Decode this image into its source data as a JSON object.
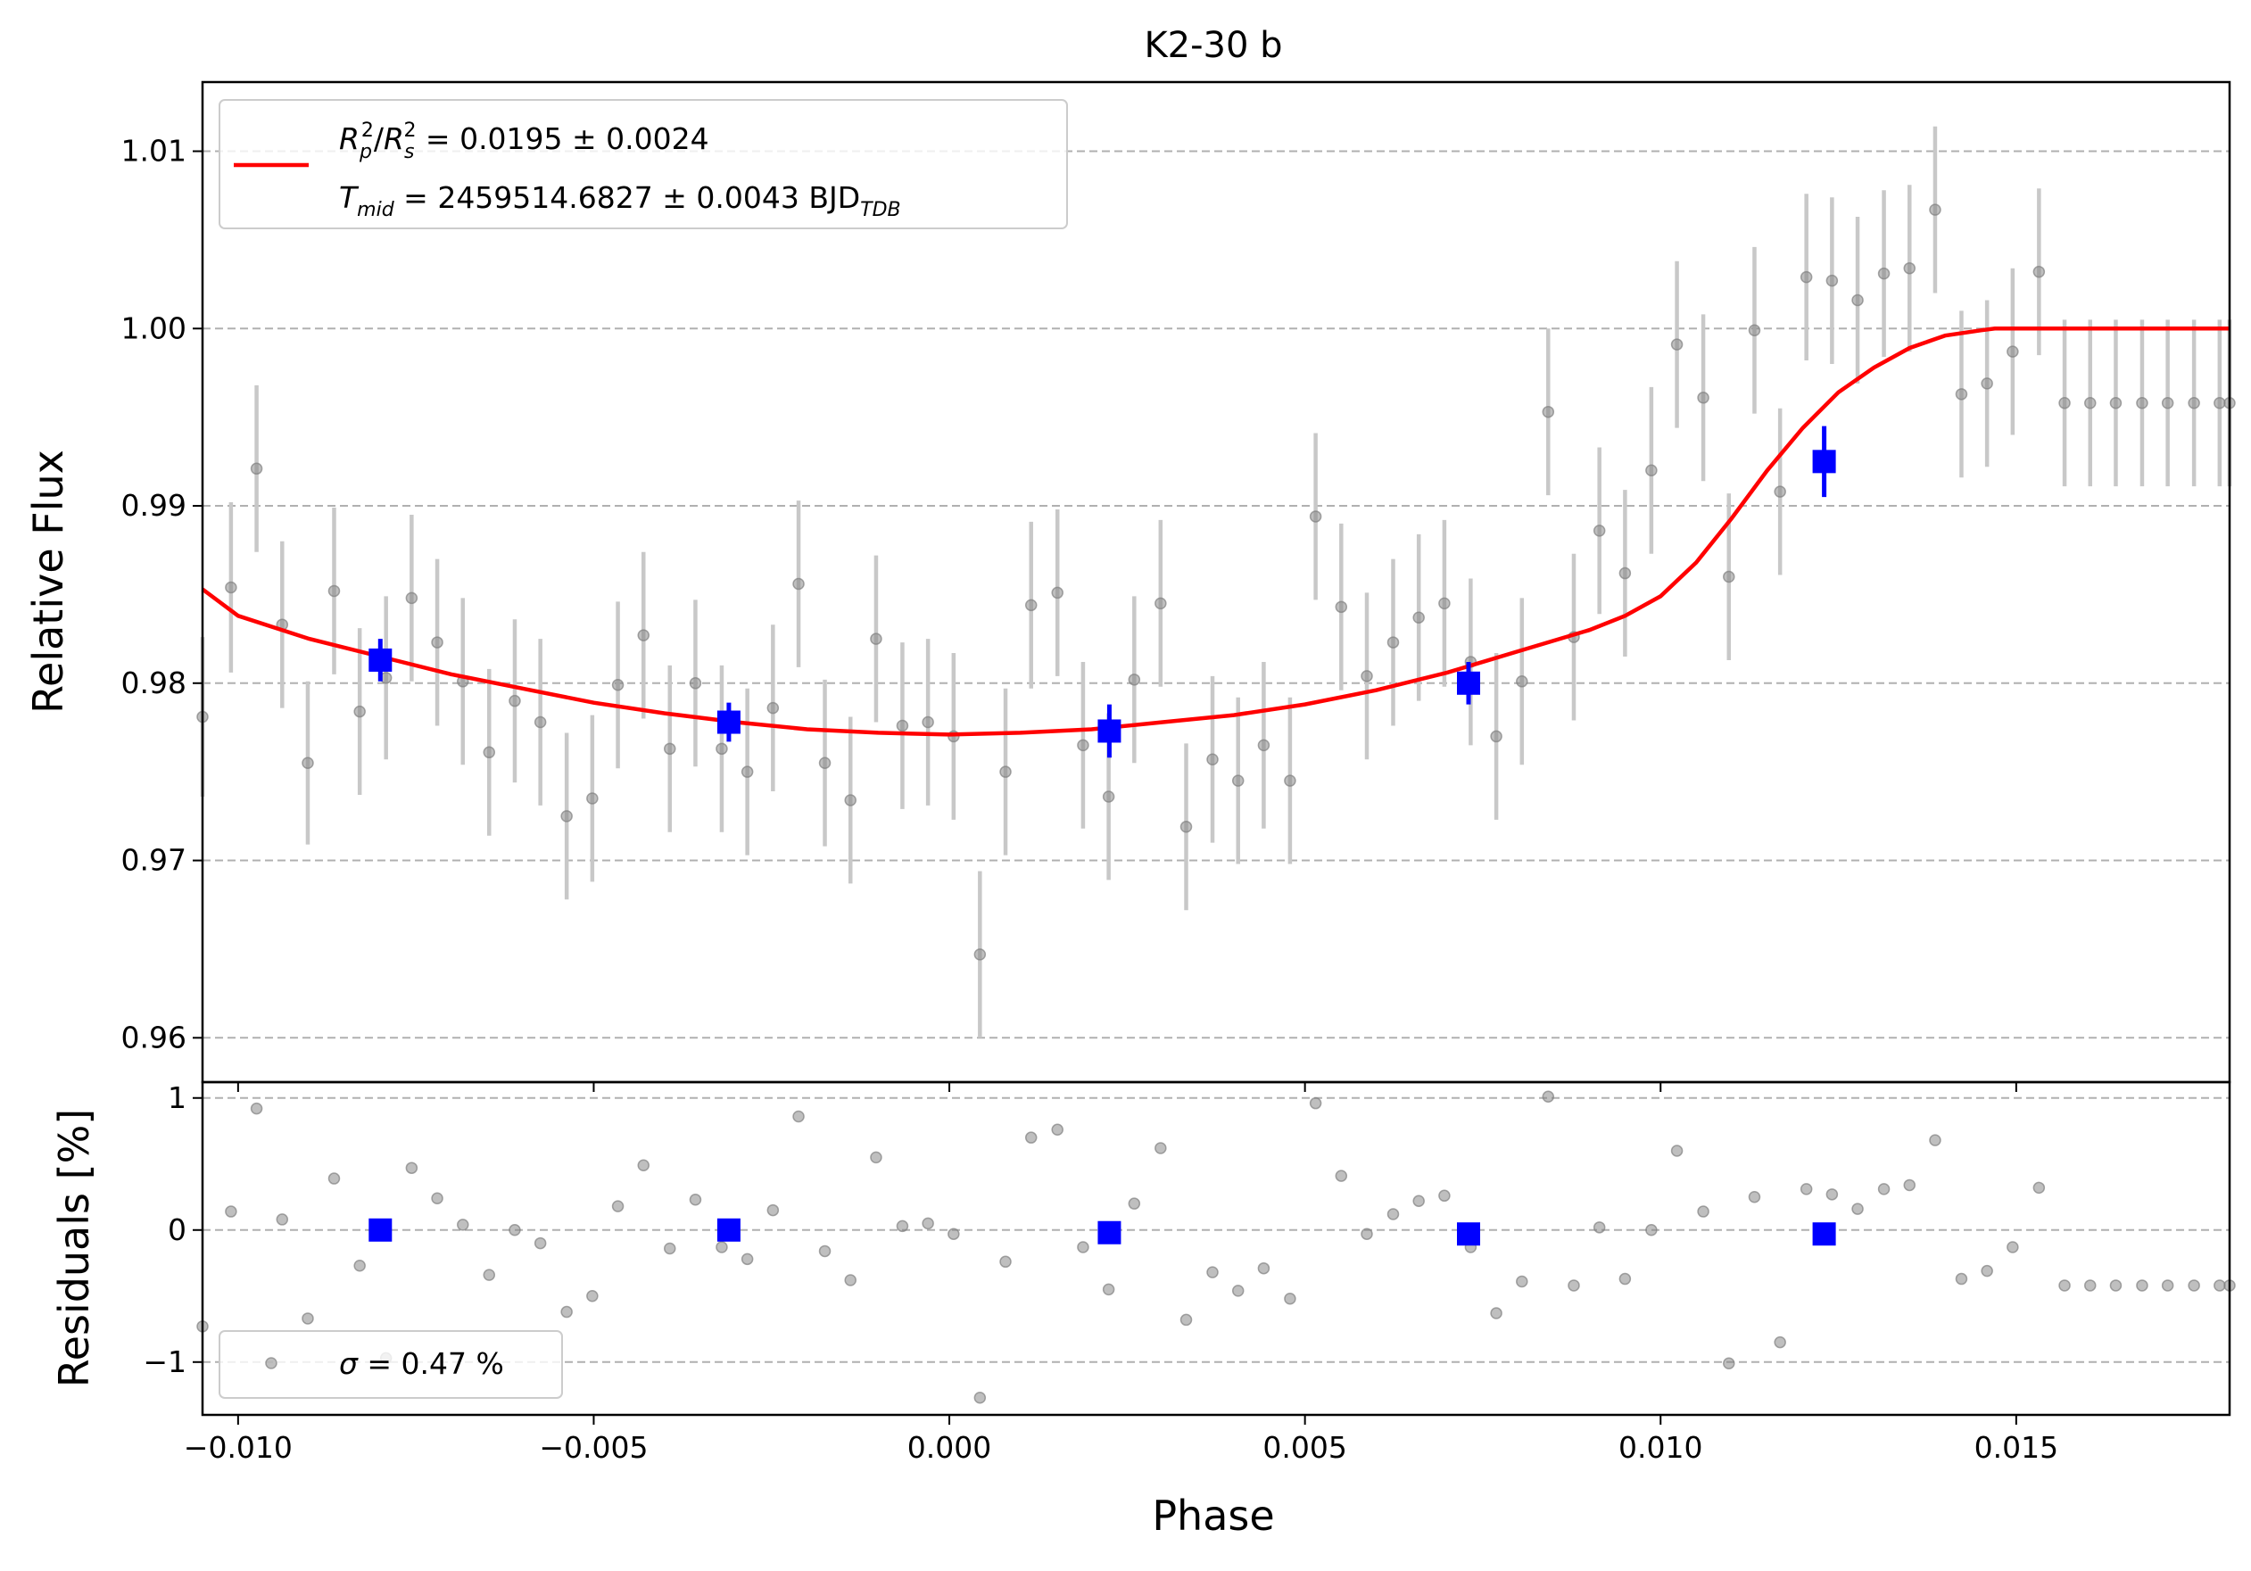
{
  "chart_data": {
    "type": "scatter",
    "title": "K2-30 b",
    "xlabel": "Phase",
    "ylabel_top": "Relative Flux",
    "ylabel_bottom": "Residuals [%]",
    "xlim": [
      -0.0105,
      0.018
    ],
    "ylim_top": [
      0.9575,
      1.0139
    ],
    "ylim_bottom": [
      -1.4,
      1.12
    ],
    "xticks": [
      -0.01,
      -0.005,
      0.0,
      0.005,
      0.01,
      0.015
    ],
    "xtick_labels": [
      "−0.010",
      "−0.005",
      "0.000",
      "0.005",
      "0.010",
      "0.015"
    ],
    "yticks_top": [
      0.96,
      0.97,
      0.98,
      0.99,
      1.0,
      1.01
    ],
    "ytick_labels_top": [
      "0.96",
      "0.97",
      "0.98",
      "0.99",
      "1.00",
      "1.01"
    ],
    "yticks_bottom": [
      -1,
      0,
      1
    ],
    "ytick_labels_bottom": [
      "−1",
      "0",
      "1"
    ],
    "grid": "horizontal dashed",
    "legend_top": {
      "placement": "top-left",
      "line1": {
        "sym": "R",
        "sub1": "p",
        "sup1": "2",
        "sep": "/",
        "sym2": "R",
        "sub2": "s",
        "sup2": "2",
        "rest": " = 0.0195 ± 0.0024"
      },
      "line2": {
        "sym": "T",
        "sub": "mid",
        "rest": " = 2459514.6827 ± 0.0043 BJD",
        "unit_sub": "TDB"
      }
    },
    "legend_bottom": {
      "placement": "bottom-left",
      "sym": "σ",
      "rest": " = 0.47 %"
    },
    "colors": {
      "data": "#808080",
      "errorbar": "#c8c8c8",
      "binned": "#0000ff",
      "model": "#ff0000",
      "grid": "#b0b0b0"
    },
    "model": {
      "x": [
        -0.0105,
        -0.01,
        -0.009,
        -0.008,
        -0.007,
        -0.006,
        -0.005,
        -0.004,
        -0.003,
        -0.002,
        -0.001,
        0.0,
        0.001,
        0.002,
        0.003,
        0.004,
        0.005,
        0.006,
        0.007,
        0.008,
        0.009,
        0.0095,
        0.01,
        0.0105,
        0.011,
        0.0115,
        0.012,
        0.0125,
        0.013,
        0.0135,
        0.014,
        0.0145,
        0.0147,
        0.016,
        0.018
      ],
      "y": [
        0.9853,
        0.9838,
        0.9825,
        0.9815,
        0.9805,
        0.9797,
        0.9789,
        0.9783,
        0.9778,
        0.9774,
        0.9772,
        0.9771,
        0.9772,
        0.9774,
        0.9778,
        0.9782,
        0.9788,
        0.9796,
        0.9806,
        0.9818,
        0.983,
        0.9838,
        0.9849,
        0.9868,
        0.9893,
        0.992,
        0.9944,
        0.9964,
        0.9978,
        0.9989,
        0.9996,
        0.9999,
        1.0,
        1.0,
        1.0
      ]
    },
    "points": {
      "x": [
        -0.0105,
        -0.0101,
        -0.00974,
        -0.00938,
        -0.00902,
        -0.00865,
        -0.00829,
        -0.00792,
        -0.00756,
        -0.0072,
        -0.00684,
        -0.00647,
        -0.00611,
        -0.00575,
        -0.00538,
        -0.00502,
        -0.00466,
        -0.0043,
        -0.00393,
        -0.00357,
        -0.0032,
        -0.00284,
        -0.00248,
        -0.00212,
        -0.00175,
        -0.00139,
        -0.00103,
        -0.00066,
        -0.0003,
        6e-05,
        0.00043,
        0.00079,
        0.00115,
        0.00152,
        0.00188,
        0.00224,
        0.0026,
        0.00297,
        0.00333,
        0.0037,
        0.00406,
        0.00442,
        0.00479,
        0.00515,
        0.00551,
        0.00587,
        0.00624,
        0.0066,
        0.00696,
        0.00733,
        0.00769,
        0.00805,
        0.00842,
        0.00878,
        0.00914,
        0.0095,
        0.00987,
        0.01023,
        0.0106,
        0.01096,
        0.01132,
        0.01168,
        0.01205,
        0.01241,
        0.01277,
        0.01314,
        0.0135,
        0.01386,
        0.01423,
        0.01459,
        0.01495,
        0.01532,
        0.01568,
        0.01604,
        0.0164,
        0.01677,
        0.01713,
        0.0175,
        0.01786,
        0.018
      ],
      "y": [
        0.9781,
        0.9854,
        0.9921,
        0.9833,
        0.9755,
        0.9852,
        0.9784,
        0.9803,
        0.9848,
        0.9823,
        0.9801,
        0.9761,
        0.979,
        0.9778,
        0.9725,
        0.9735,
        0.9799,
        0.9827,
        0.9763,
        0.98,
        0.9763,
        0.975,
        0.9786,
        0.9856,
        0.9755,
        0.9734,
        0.9825,
        0.9776,
        0.9778,
        0.977,
        0.9647,
        0.975,
        0.9844,
        0.9851,
        0.9765,
        0.9736,
        0.9802,
        0.9845,
        0.9719,
        0.9757,
        0.9745,
        0.9765,
        0.9745,
        0.9894,
        0.9843,
        0.9804,
        0.9823,
        0.9837,
        0.9845,
        0.9812,
        0.977,
        0.9801,
        0.9953,
        0.9826,
        0.9886,
        0.9862,
        0.992,
        0.9991,
        0.9961,
        0.986,
        0.9999,
        0.9908,
        1.0029,
        1.0027,
        1.0016,
        1.0031,
        1.0034,
        1.0067,
        0.9963,
        0.9969,
        0.9987,
        1.0032,
        0.9958,
        0.9958,
        0.9958,
        0.9958,
        0.9958,
        0.9958,
        0.9958,
        0.9958
      ],
      "err": [
        0.0045,
        0.0048,
        0.0047,
        0.0047,
        0.0046,
        0.0047,
        0.0047,
        0.0046,
        0.0047,
        0.0047,
        0.0047,
        0.0047,
        0.0046,
        0.0047,
        0.0047,
        0.0047,
        0.0047,
        0.0047,
        0.0047,
        0.0047,
        0.0047,
        0.0047,
        0.0047,
        0.0047,
        0.0047,
        0.0047,
        0.0047,
        0.0047,
        0.0047,
        0.0047,
        0.0047,
        0.0047,
        0.0047,
        0.0047,
        0.0047,
        0.0047,
        0.0047,
        0.0047,
        0.0047,
        0.0047,
        0.0047,
        0.0047,
        0.0047,
        0.0047,
        0.0047,
        0.0047,
        0.0047,
        0.0047,
        0.0047,
        0.0047,
        0.0047,
        0.0047,
        0.0047,
        0.0047,
        0.0047,
        0.0047,
        0.0047,
        0.0047,
        0.0047,
        0.0047,
        0.0047,
        0.0047,
        0.0047,
        0.0047,
        0.0047,
        0.0047,
        0.0047,
        0.0047,
        0.0047,
        0.0047,
        0.0047,
        0.0047,
        0.0047,
        0.0047,
        0.0047,
        0.0047,
        0.0047,
        0.0047,
        0.0047,
        0.0047
      ]
    },
    "binned": {
      "x": [
        -0.008,
        -0.0031,
        0.00225,
        0.0073,
        0.0123
      ],
      "y": [
        0.9813,
        0.9778,
        0.9773,
        0.98,
        0.9925
      ],
      "err": [
        0.0012,
        0.0011,
        0.0015,
        0.0012,
        0.002
      ]
    },
    "residuals": {
      "x": [
        -0.0105,
        -0.0101,
        -0.00974,
        -0.00938,
        -0.00902,
        -0.00865,
        -0.00829,
        -0.00792,
        -0.00756,
        -0.0072,
        -0.00684,
        -0.00647,
        -0.00611,
        -0.00575,
        -0.00538,
        -0.00502,
        -0.00466,
        -0.0043,
        -0.00393,
        -0.00357,
        -0.0032,
        -0.00284,
        -0.00248,
        -0.00212,
        -0.00175,
        -0.00139,
        -0.00103,
        -0.00066,
        -0.0003,
        6e-05,
        0.00043,
        0.00079,
        0.00115,
        0.00152,
        0.00188,
        0.00224,
        0.0026,
        0.00297,
        0.00333,
        0.0037,
        0.00406,
        0.00442,
        0.00479,
        0.00515,
        0.00551,
        0.00587,
        0.00624,
        0.0066,
        0.00696,
        0.00733,
        0.00769,
        0.00805,
        0.00842,
        0.00878,
        0.00914,
        0.0095,
        0.00987,
        0.01023,
        0.0106,
        0.01096,
        0.01132,
        0.01168,
        0.01205,
        0.01241,
        0.01277,
        0.01314,
        0.0135,
        0.01386,
        0.01423,
        0.01459,
        0.01495,
        0.01532,
        0.01568,
        0.01604,
        0.0164,
        0.01677,
        0.01713,
        0.0175,
        0.01786,
        0.018
      ],
      "y": [
        -0.73,
        0.14,
        0.92,
        0.08,
        -0.67,
        0.39,
        -0.27,
        -0.97,
        0.47,
        0.24,
        0.04,
        -0.34,
        0.0,
        -0.1,
        -0.62,
        -0.5,
        0.18,
        0.49,
        -0.14,
        0.23,
        -0.13,
        -0.22,
        0.15,
        0.86,
        -0.16,
        -0.38,
        0.55,
        0.03,
        0.05,
        -0.03,
        -1.27,
        -0.24,
        0.7,
        0.76,
        -0.13,
        -0.45,
        0.2,
        0.62,
        -0.68,
        -0.32,
        -0.46,
        -0.29,
        -0.52,
        0.96,
        0.41,
        -0.03,
        0.12,
        0.22,
        0.26,
        -0.13,
        -0.63,
        -0.39,
        1.01,
        -0.42,
        0.02,
        -0.37,
        0.0,
        0.6,
        0.14,
        -1.01,
        0.25,
        -0.85,
        0.31,
        0.27,
        0.16,
        0.31,
        0.34,
        0.68,
        -0.37,
        -0.31,
        -0.13,
        0.32,
        -0.42,
        -0.42,
        -0.42,
        -0.42,
        -0.42,
        -0.42,
        -0.42,
        -0.42
      ]
    },
    "binned_residuals": {
      "x": [
        -0.008,
        -0.0031,
        0.00225,
        0.0073,
        0.0123
      ],
      "y": [
        0.0,
        0.0,
        -0.02,
        -0.03,
        -0.03
      ]
    }
  }
}
